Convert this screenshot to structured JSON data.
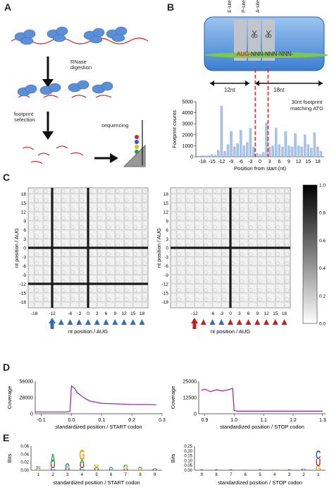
{
  "panels": {
    "A": {
      "label": "A",
      "step1": "RNase\ndigestion",
      "step1_lines": [
        "RNase",
        "digestion"
      ],
      "step2_lines": [
        "footprint",
        "selection"
      ],
      "step3": "sequencing"
    },
    "B": {
      "label": "B",
      "sites": [
        "E-site",
        "P-site",
        "A-site"
      ],
      "mrna": {
        "start": "AUG",
        "rest": "-NNN-NNN-NNN-"
      },
      "left_span": "12nt",
      "right_span": "18nt",
      "annotation_lines": [
        "30nt footprint",
        "matching ATG"
      ]
    },
    "C": {
      "label": "C"
    },
    "D": {
      "label": "D"
    },
    "E": {
      "label": "E"
    }
  },
  "chart_data": [
    {
      "id": "B-histogram",
      "type": "bar",
      "ylabel": "Footprint counts",
      "xlabel": "Position from start (nt)",
      "ylim": [
        0,
        5000
      ],
      "yticks": [
        0,
        1000,
        2000,
        3000,
        4000,
        5000
      ],
      "xticks": [
        -18,
        -15,
        -12,
        -9,
        -6,
        -3,
        0,
        3,
        6,
        9,
        12,
        15,
        18
      ],
      "x": [
        -19,
        -18,
        -17,
        -16,
        -15,
        -14,
        -13,
        -12,
        -11,
        -10,
        -9,
        -8,
        -7,
        -6,
        -5,
        -4,
        -3,
        -2,
        -1,
        0,
        1,
        2,
        3,
        4,
        5,
        6,
        7,
        8,
        9,
        10,
        11,
        12,
        13,
        14,
        15,
        16,
        17,
        18,
        19
      ],
      "values": [
        60,
        100,
        80,
        120,
        200,
        150,
        600,
        4600,
        500,
        1100,
        2300,
        900,
        1200,
        2400,
        1000,
        1300,
        2600,
        900,
        300,
        200,
        400,
        3100,
        900,
        1000,
        2600,
        1100,
        900,
        2300,
        1000,
        900,
        2100,
        1000,
        900,
        2000,
        1100,
        800,
        2200,
        900,
        500
      ],
      "color": "#a9c4e8"
    },
    {
      "id": "C-heatmap-left",
      "type": "heatmap",
      "ylabel": "nt position / AUG",
      "xlabel": "nt position / AUG",
      "ticks": [
        -18,
        -12,
        -6,
        -3,
        0,
        3,
        6,
        9,
        12,
        15,
        18
      ],
      "xtick_labels": [
        "-18",
        "-12",
        "-6",
        "-3",
        "0",
        "3",
        "6",
        "9",
        "12",
        "15",
        "18"
      ],
      "ytick_labels": [
        "18",
        "15",
        "12",
        "9",
        "6",
        "3",
        "0",
        "-3",
        "-6",
        "-9",
        "-12",
        "-15",
        "-18"
      ],
      "dark_lines": [
        -12,
        0
      ],
      "arrows": [
        "blue",
        "blue",
        "blue",
        "blue",
        "blue",
        "blue",
        "blue",
        "blue",
        "blue",
        "blue",
        "blue"
      ]
    },
    {
      "id": "C-heatmap-right",
      "type": "heatmap",
      "ylabel": "nt position / AUG",
      "xlabel": "nt position / AUG",
      "xtick_labels": [
        "-12",
        "-6",
        "-3",
        "0",
        "3",
        "6",
        "9",
        "12",
        "15",
        "18"
      ],
      "ytick_labels": [
        "18",
        "15",
        "12",
        "9",
        "6",
        "3",
        "0",
        "-3",
        "-6",
        "-9",
        "-12",
        "-15",
        "-18"
      ],
      "dark_lines": [
        0
      ],
      "arrows": [
        "red",
        "red",
        "blue",
        "blue",
        "red",
        "red",
        "red",
        "red",
        "red",
        "red",
        "red"
      ]
    },
    {
      "id": "C-colorbar",
      "type": "heatmap",
      "ticks": [
        "1.0",
        "0.8",
        "0.6",
        "0.4",
        "0.2",
        "0.0"
      ]
    },
    {
      "id": "D-start",
      "type": "line",
      "ylabel": "Coverage",
      "xlabel": "standardized position / START codon",
      "yticks": [
        "56000",
        "28000",
        "0"
      ],
      "xticks": [
        "-0.1",
        "0.0",
        "0.1",
        "0.2",
        "0.3"
      ],
      "x": [
        -0.12,
        -0.02,
        -0.005,
        0.0,
        0.01,
        0.02,
        0.04,
        0.06,
        0.1,
        0.15,
        0.2,
        0.25,
        0.28
      ],
      "y": [
        3000,
        3000,
        4000,
        48000,
        44000,
        36000,
        28000,
        22000,
        18000,
        17000,
        16000,
        16000,
        15500
      ],
      "xlim": [
        -0.12,
        0.3
      ],
      "ylim": [
        0,
        56000
      ],
      "color": "#9b30a8"
    },
    {
      "id": "D-stop",
      "type": "line",
      "ylabel": "Coverage",
      "xlabel": "standardized position / STOP codon",
      "yticks": [
        "25000",
        "12500",
        "0"
      ],
      "xticks": [
        "0.9",
        "1.0",
        "1.1",
        "1.2",
        "1.3"
      ],
      "x": [
        0.89,
        0.9,
        0.92,
        0.94,
        0.96,
        0.98,
        0.995,
        1.0,
        1.01,
        1.1,
        1.2,
        1.3
      ],
      "y": [
        18000,
        19000,
        17000,
        18500,
        17500,
        18500,
        19500,
        2500,
        2000,
        2000,
        2000,
        2000
      ],
      "xlim": [
        0.88,
        1.31
      ],
      "ylim": [
        0,
        25000
      ],
      "color": "#9b30a8"
    },
    {
      "id": "E-start-logo",
      "type": "bar",
      "ylabel": "Bits",
      "xlabel": "standardized position / START codon",
      "yticks": [
        "0.06",
        "0.04",
        "0.02",
        "0.00"
      ],
      "categories": [
        "1",
        "2",
        "3",
        "4",
        "5",
        "6",
        "7",
        "8",
        "9"
      ]
    },
    {
      "id": "E-stop-logo",
      "type": "bar",
      "ylabel": "Bits",
      "xlabel": "standardized position / STOP codon",
      "yticks": [
        "0.25",
        "0.20",
        "0.15",
        "0.10",
        "0.05",
        "0.00"
      ],
      "categories": [
        "9",
        "8",
        "7",
        "6",
        "5",
        "4",
        "3",
        "2",
        "1"
      ]
    }
  ]
}
